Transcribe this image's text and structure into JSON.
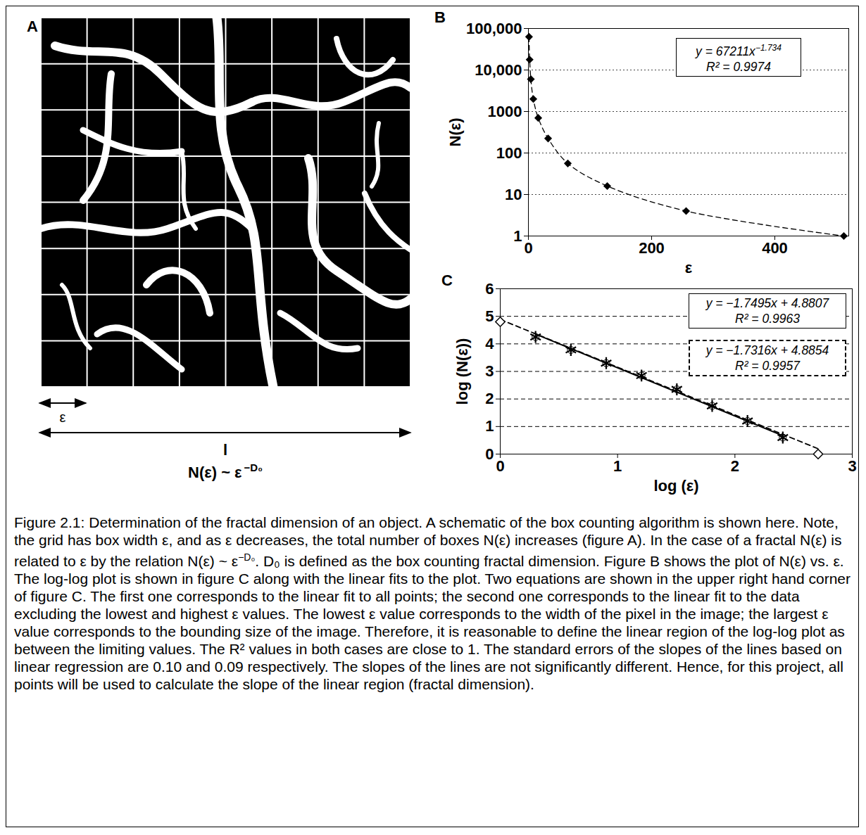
{
  "panel_A": {
    "panel_label": "A",
    "epsilon_label": "ε",
    "size_label": "l",
    "formula": "N(ε) ~ ε",
    "formula_exponent": "−D₀"
  },
  "chart_data": [
    {
      "panel_label": "B",
      "type": "line",
      "x_label": "ε",
      "y_label": "N(ε)",
      "x": [
        1,
        2,
        4,
        8,
        16,
        32,
        64,
        128,
        256,
        512
      ],
      "values": [
        63000,
        17800,
        6000,
        2000,
        700,
        224,
        56,
        16,
        4,
        1
      ],
      "color": "#000000",
      "marker": "diamond",
      "line_style": "dashed",
      "log": "y",
      "xlim": [
        0,
        520
      ],
      "ylim": [
        1,
        100000
      ],
      "xticks": [
        0,
        200,
        400
      ],
      "yticks": [
        1,
        10,
        100,
        1000,
        {
          "value": 10000,
          "label": "10,000"
        },
        {
          "value": 100000,
          "label": "100,000"
        }
      ],
      "grid": true,
      "annotations": [
        {
          "text": "y = 67211x",
          "superscript": "−1.734",
          "line2": "R² = 0.9974"
        }
      ]
    },
    {
      "panel_label": "C",
      "type": "scatter",
      "x_label": "log (ε)",
      "y_label": "log (N(ε))",
      "x": [
        0,
        0.301,
        0.602,
        0.903,
        1.204,
        1.505,
        1.806,
        2.107,
        2.408,
        2.709
      ],
      "series": [
        {
          "values": [
            null,
            4.25,
            3.78,
            3.3,
            2.85,
            2.35,
            1.75,
            1.2,
            0.6,
            null
          ],
          "marker": "asterisk",
          "color": "#000000"
        },
        {
          "values": [
            4.8,
            null,
            null,
            null,
            null,
            null,
            null,
            null,
            null,
            0
          ],
          "marker": "open_diamond",
          "color": "#000000"
        }
      ],
      "xlim": [
        0,
        3
      ],
      "ylim": [
        0,
        6
      ],
      "xticks": [
        0,
        1,
        2,
        3
      ],
      "yticks": [
        0,
        1,
        2,
        3,
        4,
        5,
        6
      ],
      "grid": true,
      "fits": [
        {
          "slope": -1.7495,
          "intercept": 4.8807,
          "text": "y = −1.7495x + 4.8807",
          "r2_text": "R² = 0.9963",
          "line_style": "solid"
        },
        {
          "slope": -1.7316,
          "intercept": 4.8854,
          "text": "y = −1.7316x + 4.8854",
          "r2_text": "R² = 0.9957",
          "line_style": "dashed"
        }
      ]
    }
  ],
  "caption": [
    {
      "text": "Figure 2.1: Determination of the fractal dimension of an object.  A schematic of the box counting algorithm is shown here.  Note, the grid has box width ε, and as ε decreases, the total number of boxes N(ε) increases (figure A).  In the case of a fractal N(ε) is related to ε by the relation N(ε) ~ ε"
    },
    {
      "sup": "−D₀"
    },
    {
      "text": ". D₀ is defined as the box counting fractal dimension. Figure B shows the plot of N(ε) vs. ε.  The log-log plot is shown in figure C along with the linear fits to the plot. Two equations are shown in the upper right hand corner of figure C. The first one corresponds to the linear fit to all points; the second one corresponds to the linear fit to the data excluding the lowest and highest ε values. The lowest ε value corresponds to the width of the pixel in the image; the largest ε value corresponds to the bounding size of the image. Therefore, it is reasonable to define the linear region of the log-log plot as between the limiting values. The R² values in both cases are close to 1. The standard errors of the slopes of the lines based on linear regression are 0.10 and 0.09 respectively. The slopes of the lines are not significantly different. Hence, for this project, all points will be used to calculate the slope of the linear region (fractal dimension)."
    }
  ]
}
